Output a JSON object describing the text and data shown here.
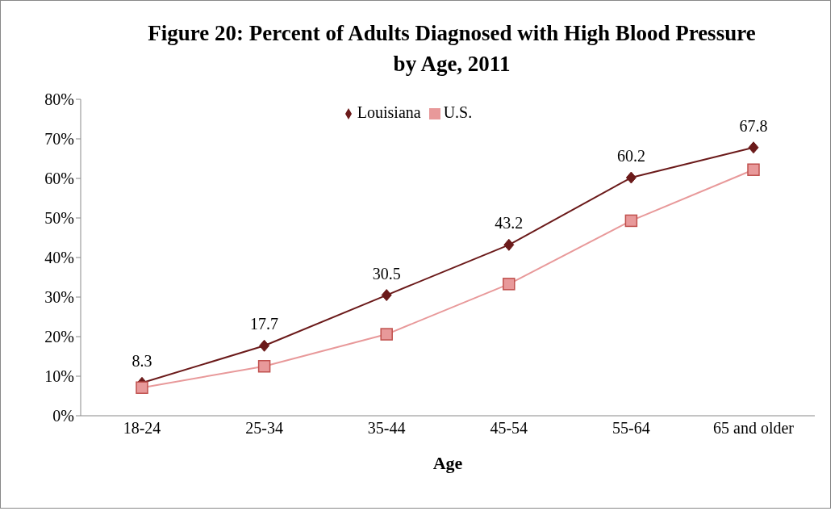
{
  "chart_data": {
    "type": "line",
    "title": "Figure 20: Percent of Adults Diagnosed with High Blood Pressure by Age, 2011",
    "xlabel": "Age",
    "categories": [
      "18-24",
      "25-34",
      "35-44",
      "45-54",
      "55-64",
      "65 and older"
    ],
    "series": [
      {
        "name": "Louisiana",
        "color": "#6b1a1a",
        "marker": "diamond",
        "values": [
          8.3,
          17.7,
          30.5,
          43.2,
          60.2,
          67.8
        ],
        "value_labels": [
          "8.3",
          "17.7",
          "30.5",
          "43.2",
          "60.2",
          "67.8"
        ]
      },
      {
        "name": "U.S.",
        "color": "#e8999a",
        "marker": "square",
        "values": [
          7.1,
          12.5,
          20.6,
          33.3,
          49.3,
          62.2
        ]
      }
    ],
    "ylim": [
      0,
      80
    ],
    "yticks": [
      {
        "value": 0,
        "label": "0%"
      },
      {
        "value": 10,
        "label": "10%"
      },
      {
        "value": 20,
        "label": "20%"
      },
      {
        "value": 30,
        "label": "30%"
      },
      {
        "value": 40,
        "label": "40%"
      },
      {
        "value": 50,
        "label": "50%"
      },
      {
        "value": 60,
        "label": "60%"
      },
      {
        "value": 70,
        "label": "70%"
      },
      {
        "value": 80,
        "label": "80%"
      }
    ],
    "grid": false,
    "legend": "top"
  }
}
